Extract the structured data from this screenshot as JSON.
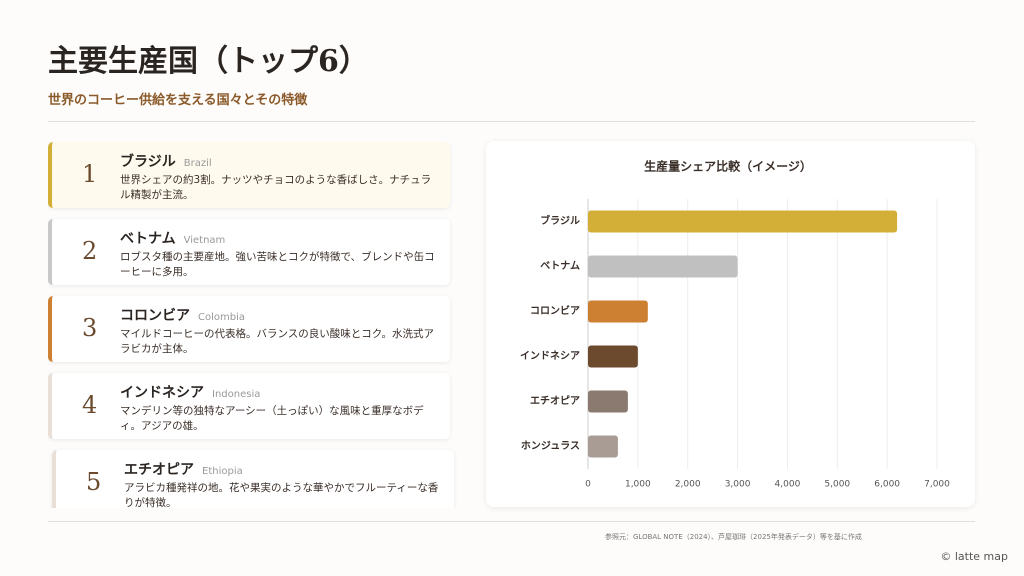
{
  "header": {
    "title": "主要生産国（トップ6）",
    "subtitle": "世界のコーヒー供給を支える国々とその特徴"
  },
  "cards": [
    {
      "rank": 1,
      "name": "ブラジル",
      "english": "Brazil",
      "description": "世界シェアの約3割。ナッツやチョコのような香ばしさ。ナチュラル精製が主流。"
    },
    {
      "rank": 2,
      "name": "ベトナム",
      "english": "Vietnam",
      "description": "ロブスタ種の主要産地。強い苦味とコクが特徴で、ブレンドや缶コーヒーに多用。"
    },
    {
      "rank": 3,
      "name": "コロンビア",
      "english": "Colombia",
      "description": "マイルドコーヒーの代表格。バランスの良い酸味とコク。水洗式アラビカが主体。"
    },
    {
      "rank": 4,
      "name": "インドネシア",
      "english": "Indonesia",
      "description": "マンデリン等の独特なアーシー（土っぽい）な風味と重厚なボディ。アジアの雄。"
    },
    {
      "rank": 5,
      "name": "エチオピア",
      "english": "Ethiopia",
      "description": "アラビカ種発祥の地。花や果実のような華やかでフルーティーな香りが特徴。"
    }
  ],
  "chart_data": {
    "type": "hbar",
    "title": "生産量シェア比較（イメージ）",
    "categories": [
      "ブラジル",
      "ベトナム",
      "コロンビア",
      "インドネシア",
      "エチオピア",
      "ホンジュラス"
    ],
    "values": [
      6200,
      3000,
      1200,
      1000,
      800,
      600
    ],
    "colors": [
      "#d4af37",
      "#c0c0c0",
      "#cd7f32",
      "#6b4a2e",
      "#8b7a6f",
      "#a89c94"
    ],
    "xlim": [
      0,
      7000
    ],
    "xticks": [
      0,
      {
        "value": 1000,
        "label": "1,000"
      },
      {
        "value": 2000,
        "label": "2,000"
      },
      {
        "value": 3000,
        "label": "3,000"
      },
      {
        "value": 4000,
        "label": "4,000"
      },
      {
        "value": 5000,
        "label": "5,000"
      },
      {
        "value": 6000,
        "label": "6,000"
      },
      {
        "value": 7000,
        "label": "7,000"
      }
    ],
    "grid": true
  },
  "footer": {
    "source": "参照元：GLOBAL NOTE（2024）、芦屋珈琲（2025年発表データ）等を基に作成",
    "logo": "© latte map"
  }
}
